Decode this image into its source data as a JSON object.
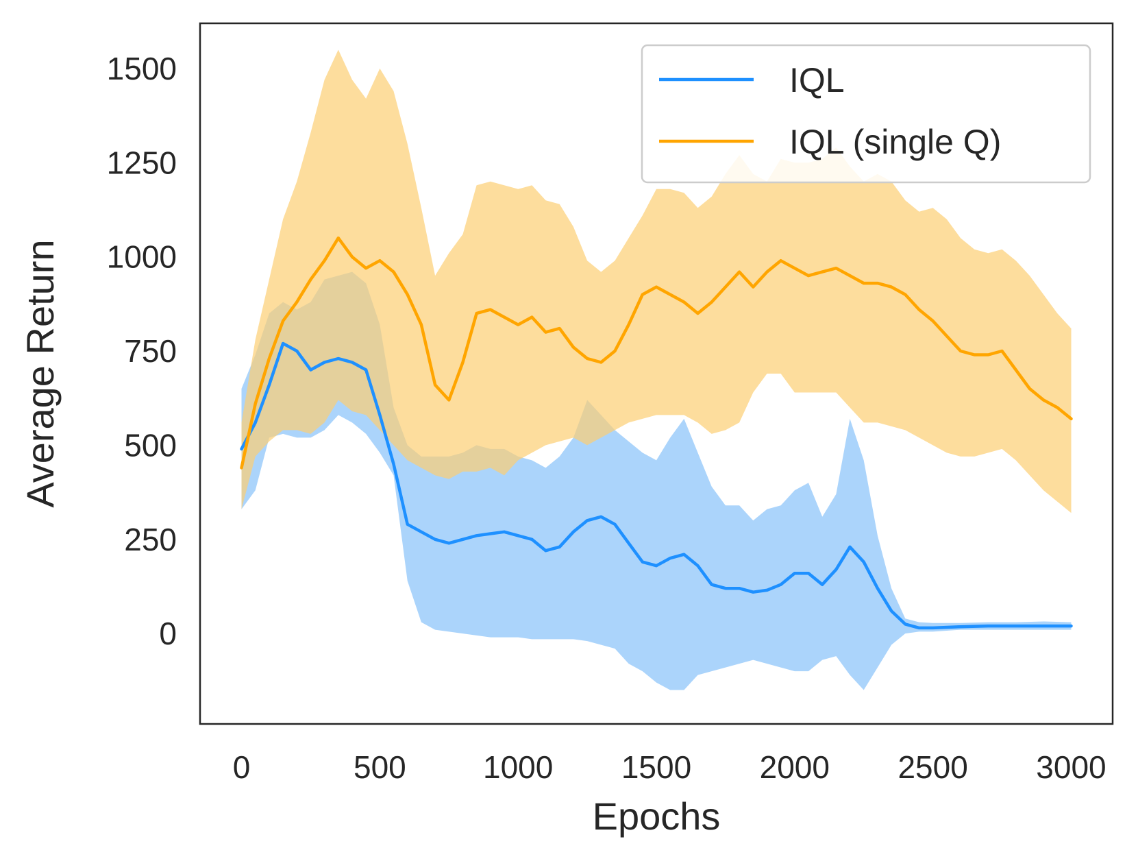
{
  "chart_data": {
    "type": "line",
    "xlabel": "Epochs",
    "ylabel": "Average Return",
    "xlim": [
      -150,
      3150
    ],
    "ylim": [
      -240,
      1620
    ],
    "xticks": [
      0,
      500,
      1000,
      1500,
      2000,
      2500,
      3000
    ],
    "xtick_labels": [
      "0",
      "500",
      "1000",
      "1500",
      "2000",
      "2500",
      "3000"
    ],
    "yticks": [
      0,
      250,
      500,
      750,
      1000,
      1250,
      1500
    ],
    "ytick_labels": [
      "0",
      "250",
      "500",
      "750",
      "1000",
      "1250",
      "1500"
    ],
    "grid": false,
    "legend_position": "top-right",
    "series": [
      {
        "name": "IQL",
        "color": "#1E90FF",
        "band_color": "#87C2FA",
        "x": [
          0,
          50,
          100,
          150,
          200,
          250,
          300,
          350,
          400,
          450,
          500,
          550,
          600,
          650,
          700,
          750,
          800,
          850,
          900,
          950,
          1000,
          1050,
          1100,
          1150,
          1200,
          1250,
          1300,
          1350,
          1400,
          1450,
          1500,
          1550,
          1600,
          1650,
          1700,
          1750,
          1800,
          1850,
          1900,
          1950,
          2000,
          2050,
          2100,
          2150,
          2200,
          2250,
          2300,
          2350,
          2400,
          2450,
          2500,
          2600,
          2700,
          2800,
          2900,
          3000
        ],
        "values": [
          490,
          560,
          660,
          770,
          750,
          700,
          720,
          730,
          720,
          700,
          580,
          450,
          290,
          270,
          250,
          240,
          250,
          260,
          265,
          270,
          260,
          250,
          220,
          230,
          270,
          300,
          310,
          290,
          240,
          190,
          180,
          200,
          210,
          180,
          130,
          120,
          120,
          110,
          115,
          130,
          160,
          160,
          130,
          170,
          230,
          190,
          120,
          60,
          25,
          15,
          15,
          18,
          20,
          20,
          20,
          20
        ],
        "lower": [
          330,
          380,
          520,
          530,
          520,
          520,
          540,
          580,
          560,
          530,
          480,
          420,
          140,
          30,
          10,
          5,
          0,
          -5,
          -10,
          -10,
          -10,
          -15,
          -15,
          -15,
          -15,
          -20,
          -30,
          -40,
          -80,
          -100,
          -130,
          -150,
          -150,
          -110,
          -100,
          -90,
          -80,
          -70,
          -80,
          -90,
          -100,
          -100,
          -70,
          -60,
          -110,
          -150,
          -90,
          -30,
          0,
          5,
          5,
          10,
          10,
          10,
          10,
          10
        ],
        "upper": [
          650,
          740,
          850,
          880,
          860,
          880,
          940,
          950,
          960,
          930,
          820,
          600,
          500,
          470,
          470,
          470,
          480,
          500,
          490,
          490,
          470,
          460,
          440,
          470,
          520,
          620,
          580,
          540,
          510,
          480,
          460,
          520,
          570,
          480,
          390,
          340,
          340,
          300,
          330,
          340,
          380,
          400,
          310,
          370,
          570,
          460,
          260,
          120,
          40,
          30,
          28,
          28,
          30,
          30,
          32,
          30
        ]
      },
      {
        "name": "IQL (single Q)",
        "color": "#FFA500",
        "band_color": "#FCCF74",
        "x": [
          0,
          50,
          100,
          150,
          200,
          250,
          300,
          350,
          400,
          450,
          500,
          550,
          600,
          650,
          700,
          750,
          800,
          850,
          900,
          950,
          1000,
          1050,
          1100,
          1150,
          1200,
          1250,
          1300,
          1350,
          1400,
          1450,
          1500,
          1550,
          1600,
          1650,
          1700,
          1750,
          1800,
          1850,
          1900,
          1950,
          2000,
          2050,
          2100,
          2150,
          2200,
          2250,
          2300,
          2350,
          2400,
          2450,
          2500,
          2550,
          2600,
          2650,
          2700,
          2750,
          2800,
          2850,
          2900,
          2950,
          3000
        ],
        "values": [
          440,
          610,
          730,
          830,
          880,
          940,
          990,
          1050,
          1000,
          970,
          990,
          960,
          900,
          820,
          660,
          620,
          720,
          850,
          860,
          840,
          820,
          840,
          800,
          810,
          760,
          730,
          720,
          750,
          820,
          900,
          920,
          900,
          880,
          850,
          880,
          920,
          960,
          920,
          960,
          990,
          970,
          950,
          960,
          970,
          950,
          930,
          930,
          920,
          900,
          860,
          830,
          790,
          750,
          740,
          740,
          750,
          700,
          650,
          620,
          600,
          570
        ],
        "lower": [
          330,
          470,
          510,
          540,
          540,
          530,
          560,
          620,
          590,
          580,
          540,
          500,
          460,
          440,
          420,
          410,
          430,
          430,
          440,
          420,
          460,
          480,
          500,
          510,
          520,
          500,
          520,
          540,
          560,
          570,
          580,
          580,
          580,
          560,
          530,
          540,
          560,
          640,
          690,
          690,
          640,
          640,
          640,
          640,
          600,
          560,
          560,
          550,
          540,
          520,
          500,
          480,
          470,
          470,
          480,
          490,
          460,
          420,
          380,
          350,
          320
        ],
        "upper": [
          560,
          780,
          940,
          1100,
          1200,
          1330,
          1470,
          1550,
          1470,
          1420,
          1500,
          1440,
          1300,
          1130,
          950,
          1010,
          1060,
          1190,
          1200,
          1190,
          1180,
          1190,
          1150,
          1140,
          1080,
          990,
          960,
          990,
          1050,
          1110,
          1180,
          1180,
          1170,
          1130,
          1160,
          1220,
          1270,
          1220,
          1200,
          1260,
          1250,
          1250,
          1260,
          1290,
          1240,
          1200,
          1220,
          1200,
          1150,
          1120,
          1130,
          1100,
          1050,
          1020,
          1010,
          1020,
          990,
          950,
          900,
          850,
          810
        ]
      }
    ]
  }
}
